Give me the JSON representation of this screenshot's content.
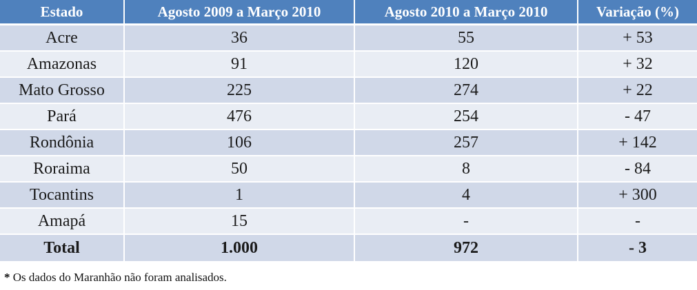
{
  "table": {
    "headers": [
      "Estado",
      "Agosto 2009 a Março 2010",
      "Agosto 2010 a Março 2010",
      "Variação (%)"
    ],
    "rows": [
      [
        "Acre",
        "36",
        "55",
        "+ 53"
      ],
      [
        "Amazonas",
        "91",
        "120",
        "+ 32"
      ],
      [
        "Mato Grosso",
        "225",
        "274",
        "+ 22"
      ],
      [
        "Pará",
        "476",
        "254",
        "- 47"
      ],
      [
        "Rondônia",
        "106",
        "257",
        "+ 142"
      ],
      [
        "Roraima",
        "50",
        "8",
        "- 84"
      ],
      [
        "Tocantins",
        "1",
        "4",
        "+ 300"
      ],
      [
        "Amapá",
        "15",
        "-",
        "-"
      ]
    ],
    "total": [
      "Total",
      "1.000",
      "972",
      "- 3"
    ]
  },
  "footnote": {
    "marker": "*",
    "text": " Os dados do Maranhão não foram analisados."
  },
  "colors": {
    "header_bg": "#4f81bd",
    "row_band_dark": "#d0d8e8",
    "row_band_light": "#e9edf4"
  }
}
